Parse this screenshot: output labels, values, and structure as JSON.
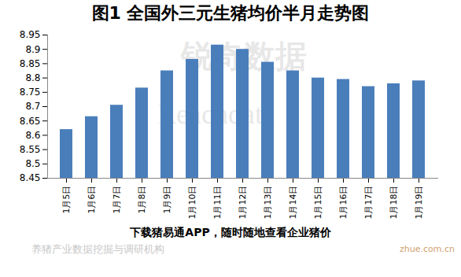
{
  "chart_data": {
    "type": "bar",
    "title": "图1 全国外三元生猪均价半月走势图",
    "categories": [
      "1月5日",
      "1月6日",
      "1月7日",
      "1月8日",
      "1月9日",
      "1月10日",
      "1月11日",
      "1月12日",
      "1月13日",
      "1月14日",
      "1月15日",
      "1月16日",
      "1月17日",
      "1月18日",
      "1月19日"
    ],
    "values": [
      8.62,
      8.665,
      8.705,
      8.765,
      8.825,
      8.865,
      8.915,
      8.9,
      8.855,
      8.825,
      8.8,
      8.795,
      8.77,
      8.78,
      8.79
    ],
    "color": "#4a7ebb",
    "ylim": [
      8.45,
      8.95
    ],
    "yticks": [
      8.45,
      8.5,
      8.55,
      8.6,
      8.65,
      8.7,
      8.75,
      8.8,
      8.85,
      8.9,
      8.95
    ],
    "grid": false,
    "caption": "下载猪易通APP，随时随地查看企业猪价",
    "annotations": [
      "锐奇数据",
      "Reachdata",
      "养猪产业数据挖掘与调研机构",
      "zhue.com.cn"
    ]
  }
}
